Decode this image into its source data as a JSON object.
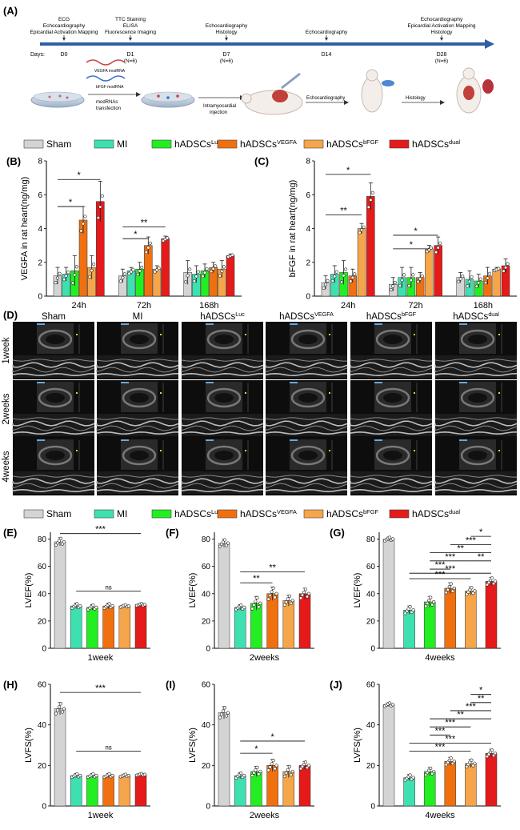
{
  "panel_labels": {
    "A": "(A)",
    "B": "(B)",
    "C": "(C)",
    "D": "(D)",
    "E": "(E)",
    "F": "(F)",
    "G": "(G)",
    "H": "(H)",
    "I": "(I)",
    "J": "(J)"
  },
  "timeline": {
    "days_label": "Days:",
    "days": [
      "D0",
      "D1",
      "D7",
      "D14",
      "D28"
    ],
    "n_labels": [
      "",
      "(N=6)",
      "(N=6)",
      "",
      "(N=6)"
    ],
    "above": [
      [
        "ECG",
        "Echocardiography",
        "Epicardial Activation Mapping"
      ],
      [
        "TTC Staining",
        "ELISA",
        "Fluorescence Imaging"
      ],
      [
        "Echocardiography",
        "Histology"
      ],
      [
        "Echocardiography"
      ],
      [
        "Echocardiography",
        "Epicardial Activation Mapping",
        "Histology"
      ]
    ],
    "schematic": {
      "plasmid_1": "VEGFA modRNA",
      "plasmid_2": "bFGF modRNA",
      "arrow_1": [
        "modRNAs",
        "transfection"
      ],
      "arrow_2": [
        "Intramyocardial",
        "injection"
      ],
      "arrow_3": "Echocardiography",
      "arrow_4": "Histology"
    }
  },
  "legend": {
    "items": [
      {
        "base": "Sham",
        "sup": "",
        "color": "#d4d4d4"
      },
      {
        "base": "MI",
        "sup": "",
        "color": "#3ee0b0"
      },
      {
        "base": "hADSCs",
        "sup": "Luc",
        "color": "#22ee22"
      },
      {
        "base": "hADSCs",
        "sup": "VEGFA",
        "color": "#f07010"
      },
      {
        "base": "hADSCs",
        "sup": "bFGF",
        "color": "#f5a54a"
      },
      {
        "base": "hADSCs",
        "sup": "dual",
        "color": "#e51a1a"
      }
    ]
  },
  "echo": {
    "columns": [
      {
        "base": "Sham",
        "sup": ""
      },
      {
        "base": "MI",
        "sup": ""
      },
      {
        "base": "hADSCs",
        "sup": "Luc"
      },
      {
        "base": "hADSCs",
        "sup": "VEGFA"
      },
      {
        "base": "hADSCs",
        "sup": "bFGF"
      },
      {
        "base": "hADSCs",
        "sup": "dual"
      }
    ],
    "rows": [
      "1week",
      "2weeks",
      "4weeks"
    ]
  },
  "chart_data": [
    {
      "id": "B",
      "type": "bar",
      "ylabel": "VEGFA in rat heart(ng/mg)",
      "ylim": [
        0,
        8
      ],
      "yticks": [
        0,
        2,
        4,
        6,
        8
      ],
      "categories": [
        "24h",
        "72h",
        "168h"
      ],
      "values": [
        [
          1.2,
          1.3,
          1.5,
          4.5,
          1.7,
          5.6
        ],
        [
          1.2,
          1.5,
          1.6,
          3.0,
          1.6,
          3.4
        ],
        [
          1.4,
          1.3,
          1.5,
          1.7,
          1.6,
          2.4
        ]
      ],
      "errors": [
        [
          0.5,
          0.4,
          0.9,
          0.8,
          0.7,
          1.2
        ],
        [
          0.4,
          0.2,
          0.4,
          0.5,
          0.2,
          0.15
        ],
        [
          0.7,
          0.5,
          0.4,
          0.3,
          0.5,
          0.1
        ]
      ],
      "sig": [
        {
          "g": 0,
          "a": 0,
          "b": 5,
          "y": 6.9,
          "label": "*"
        },
        {
          "g": 0,
          "a": 0,
          "b": 3,
          "y": 5.3,
          "label": "*"
        },
        {
          "g": 1,
          "a": 0,
          "b": 5,
          "y": 4.1,
          "label": "**"
        },
        {
          "g": 1,
          "a": 0,
          "b": 3,
          "y": 3.4,
          "label": "*"
        }
      ]
    },
    {
      "id": "C",
      "type": "bar",
      "ylabel": "bFGF in rat heart(ng/mg)",
      "ylim": [
        0,
        8
      ],
      "yticks": [
        0,
        2,
        4,
        6,
        8
      ],
      "categories": [
        "24h",
        "72h",
        "168h"
      ],
      "values": [
        [
          0.8,
          1.3,
          1.4,
          1.2,
          4.0,
          5.9
        ],
        [
          0.7,
          1.1,
          1.1,
          1.1,
          2.8,
          3.0
        ],
        [
          1.1,
          1.0,
          0.9,
          1.2,
          1.6,
          1.8
        ]
      ],
      "errors": [
        [
          0.4,
          0.5,
          0.7,
          0.4,
          0.3,
          0.8
        ],
        [
          0.4,
          0.6,
          0.6,
          0.3,
          0.2,
          0.5
        ],
        [
          0.3,
          0.5,
          0.4,
          0.5,
          0.1,
          0.4
        ]
      ],
      "sig": [
        {
          "g": 0,
          "a": 0,
          "b": 5,
          "y": 7.2,
          "label": "*"
        },
        {
          "g": 0,
          "a": 0,
          "b": 4,
          "y": 4.8,
          "label": "**"
        },
        {
          "g": 1,
          "a": 0,
          "b": 5,
          "y": 3.6,
          "label": "*"
        },
        {
          "g": 1,
          "a": 0,
          "b": 4,
          "y": 2.8,
          "label": "*"
        }
      ]
    },
    {
      "id": "E",
      "type": "bar",
      "ylabel": "LVEF(%)",
      "ylim": [
        0,
        85
      ],
      "yticks": [
        0,
        20,
        40,
        60,
        80
      ],
      "categories": [
        "1week"
      ],
      "values": [
        [
          78,
          31,
          30,
          31,
          31,
          32
        ]
      ],
      "errors": [
        [
          3,
          2,
          2,
          2,
          1,
          1
        ]
      ],
      "sig": [
        {
          "g": 0,
          "a": 0,
          "b": 5,
          "y": 84,
          "label": "***"
        },
        {
          "g": 0,
          "a": 1,
          "b": 5,
          "y": 42,
          "label": "ns"
        }
      ]
    },
    {
      "id": "F",
      "type": "bar",
      "ylabel": "LVEF(%)",
      "ylim": [
        0,
        85
      ],
      "yticks": [
        0,
        20,
        40,
        60,
        80
      ],
      "categories": [
        "2weeks"
      ],
      "values": [
        [
          77,
          30,
          33,
          40,
          35,
          40
        ]
      ],
      "errors": [
        [
          3,
          2,
          5,
          5,
          4,
          4
        ]
      ],
      "sig": [
        {
          "g": 0,
          "a": 1,
          "b": 5,
          "y": 56,
          "label": "**"
        },
        {
          "g": 0,
          "a": 1,
          "b": 3,
          "y": 48,
          "label": "**"
        }
      ]
    },
    {
      "id": "G",
      "type": "bar",
      "ylabel": "LVEF(%)",
      "ylim": [
        0,
        85
      ],
      "yticks": [
        0,
        20,
        40,
        60,
        80
      ],
      "categories": [
        "4weeks"
      ],
      "values": [
        [
          80,
          28,
          34,
          44,
          42,
          49
        ]
      ],
      "errors": [
        [
          1.5,
          3,
          4,
          4,
          3,
          3
        ]
      ],
      "sig": [
        {
          "g": 0,
          "a": 4,
          "b": 5,
          "y": 82,
          "label": "*"
        },
        {
          "g": 0,
          "a": 3,
          "b": 5,
          "y": 76,
          "label": "***"
        },
        {
          "g": 0,
          "a": 2,
          "b": 5,
          "y": 70,
          "label": "**"
        },
        {
          "g": 0,
          "a": 2,
          "b": 4,
          "y": 64,
          "label": "***"
        },
        {
          "g": 0,
          "a": 4,
          "b": 5,
          "y": 64,
          "label": "**"
        },
        {
          "g": 0,
          "a": 2,
          "b": 3,
          "y": 58,
          "label": "***"
        },
        {
          "g": 0,
          "a": 1,
          "b": 5,
          "y": 55,
          "label": "***"
        },
        {
          "g": 0,
          "a": 1,
          "b": 4,
          "y": 51,
          "label": "***"
        }
      ]
    },
    {
      "id": "H",
      "type": "bar",
      "ylabel": "LVFS(%)",
      "ylim": [
        0,
        60
      ],
      "yticks": [
        0,
        20,
        40,
        60
      ],
      "categories": [
        "1week"
      ],
      "values": [
        [
          48,
          15,
          15,
          15,
          15,
          15.5
        ]
      ],
      "errors": [
        [
          3,
          1,
          1,
          1,
          0.7,
          0.5
        ]
      ],
      "sig": [
        {
          "g": 0,
          "a": 0,
          "b": 5,
          "y": 56,
          "label": "***"
        },
        {
          "g": 0,
          "a": 1,
          "b": 5,
          "y": 27,
          "label": "ns"
        }
      ]
    },
    {
      "id": "I",
      "type": "bar",
      "ylabel": "LVFS(%)",
      "ylim": [
        0,
        60
      ],
      "yticks": [
        0,
        20,
        40,
        60
      ],
      "categories": [
        "2weeks"
      ],
      "values": [
        [
          46,
          15,
          17,
          20,
          17,
          20
        ]
      ],
      "errors": [
        [
          3,
          1.5,
          2.5,
          3,
          3,
          2
        ]
      ],
      "sig": [
        {
          "g": 0,
          "a": 1,
          "b": 5,
          "y": 32,
          "label": "*"
        },
        {
          "g": 0,
          "a": 1,
          "b": 3,
          "y": 26,
          "label": "*"
        }
      ]
    },
    {
      "id": "J",
      "type": "bar",
      "ylabel": "LVFS(%)",
      "ylim": [
        0,
        60
      ],
      "yticks": [
        0,
        20,
        40,
        60
      ],
      "categories": [
        "4weeks"
      ],
      "values": [
        [
          50,
          14,
          17,
          22,
          21,
          26
        ]
      ],
      "errors": [
        [
          1,
          1.5,
          2,
          2,
          2,
          2
        ]
      ],
      "sig": [
        {
          "g": 0,
          "a": 4,
          "b": 5,
          "y": 55,
          "label": "*"
        },
        {
          "g": 0,
          "a": 4,
          "b": 5,
          "y": 51,
          "label": "**"
        },
        {
          "g": 0,
          "a": 3,
          "b": 5,
          "y": 47,
          "label": "***"
        },
        {
          "g": 0,
          "a": 2,
          "b": 5,
          "y": 43,
          "label": "**"
        },
        {
          "g": 0,
          "a": 2,
          "b": 4,
          "y": 39,
          "label": "***"
        },
        {
          "g": 0,
          "a": 2,
          "b": 3,
          "y": 35,
          "label": "***"
        },
        {
          "g": 0,
          "a": 1,
          "b": 5,
          "y": 31,
          "label": "***"
        },
        {
          "g": 0,
          "a": 1,
          "b": 4,
          "y": 27,
          "label": "***"
        }
      ]
    }
  ]
}
